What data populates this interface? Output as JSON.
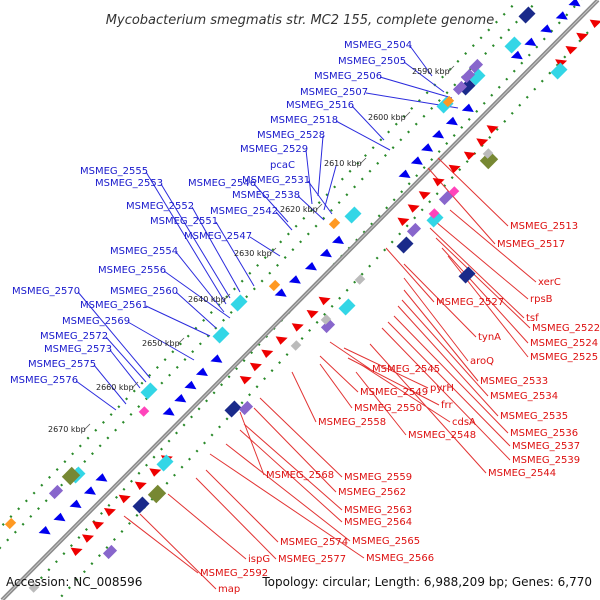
{
  "title": "Mycobacterium smegmatis str. MC2 155, complete genome",
  "footer": {
    "accession": "Accession: NC_008596",
    "summary": "Topology: circular; Length: 6,988,209 bp; Genes: 6,770"
  },
  "colors": {
    "forward_label": "#1a1acc",
    "reverse_label": "#dd1111",
    "forward_arrow": "#0000ee",
    "reverse_arrow": "#ee0000",
    "backbone": "#888888",
    "dots": "#2a8a2a"
  },
  "scale_ticks": [
    "2590 kbp",
    "2600 kbp",
    "2610 kbp",
    "2620 kbp",
    "2630 kbp",
    "2640 kbp",
    "2650 kbp",
    "2660 kbp",
    "2670 kbp"
  ],
  "forward_genes": [
    "MSMEG_2504",
    "MSMEG_2505",
    "MSMEG_2506",
    "MSMEG_2507",
    "MSMEG_2516",
    "MSMEG_2518",
    "MSMEG_2528",
    "MSMEG_2529",
    "pcaC",
    "MSMEG_2531",
    "MSMEG_2538",
    "MSMEG_2542",
    "MSMEG_2546",
    "MSMEG_2547",
    "MSMEG_2551",
    "MSMEG_2552",
    "MSMEG_2553",
    "MSMEG_2555",
    "MSMEG_2554",
    "MSMEG_2556",
    "MSMEG_2560",
    "MSMEG_2561",
    "MSMEG_2569",
    "MSMEG_2570",
    "MSMEG_2572",
    "MSMEG_2573",
    "MSMEG_2575",
    "MSMEG_2576"
  ],
  "reverse_genes": [
    "MSMEG_2513",
    "MSMEG_2517",
    "xerC",
    "rpsB",
    "tsf",
    "MSMEG_2522",
    "MSMEG_2524",
    "MSMEG_2525",
    "MSMEG_2527",
    "tynA",
    "aroQ",
    "MSMEG_2533",
    "MSMEG_2534",
    "MSMEG_2535",
    "MSMEG_2536",
    "MSMEG_2537",
    "MSMEG_2539",
    "MSMEG_2544",
    "MSMEG_2545",
    "pyrH",
    "MSMEG_2549",
    "frr",
    "MSMEG_2550",
    "cdsA",
    "MSMEG_2558",
    "MSMEG_2548",
    "MSMEG_2559",
    "MSMEG_2568",
    "MSMEG_2562",
    "MSMEG_2563",
    "MSMEG_2564",
    "MSMEG_2565",
    "MSMEG_2566",
    "MSMEG_2574",
    "MSMEG_2577",
    "ispG",
    "MSMEG_2592",
    "map"
  ]
}
